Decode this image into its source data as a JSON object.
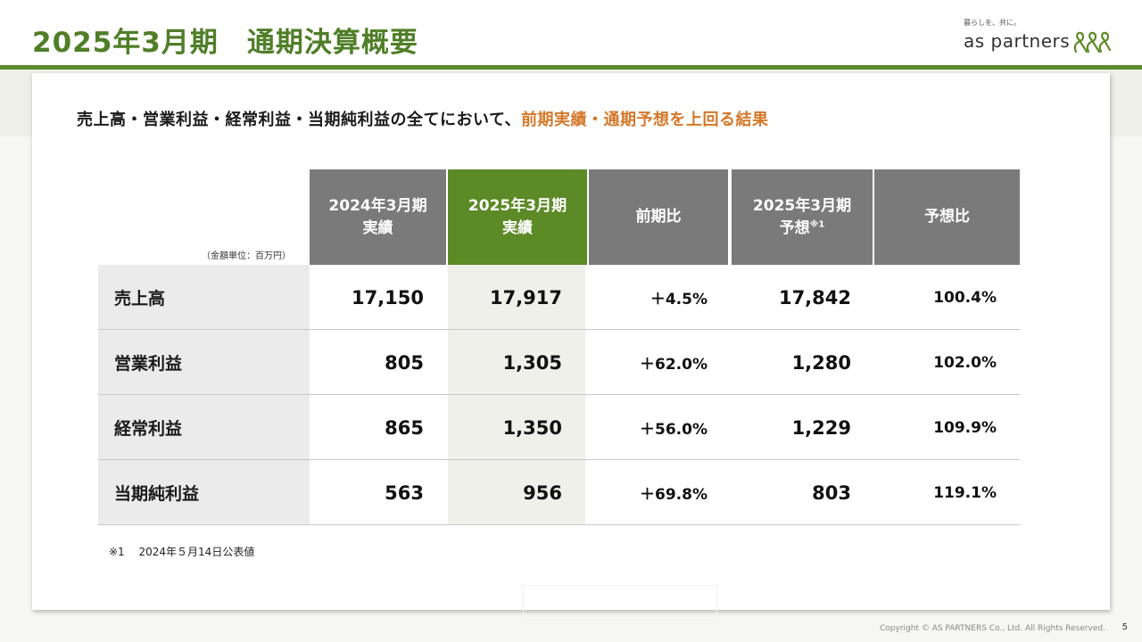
{
  "header": {
    "title": "2025年3月期　通期決算概要",
    "logo_tagline": "暮らしを、共に。",
    "logo_text": "as partners",
    "logo_icon": "ampersand-logo-icon"
  },
  "headline": {
    "prefix": "売上高・営業利益・経常利益・当期純利益の全てにおいて、",
    "highlight": "前期実績・通期予想を上回る結果"
  },
  "table": {
    "unit_note": "（金額単位：百万円）",
    "columns": [
      {
        "line1": "2024年3月期",
        "line2": "実績"
      },
      {
        "line1": "2025年3月期",
        "line2": "実績"
      },
      {
        "line1": "前期比",
        "line2": ""
      },
      {
        "line1": "2025年3月期",
        "line2": "予想",
        "sup": "※1"
      },
      {
        "line1": "予想比",
        "line2": ""
      }
    ],
    "rows": [
      {
        "label": "売上高",
        "prev": "17,150",
        "cur": "17,917",
        "yoy": "＋4.5%",
        "forecast": "17,842",
        "vs_forecast": "100.4%"
      },
      {
        "label": "営業利益",
        "prev": "805",
        "cur": "1,305",
        "yoy": "＋62.0%",
        "forecast": "1,280",
        "vs_forecast": "102.0%"
      },
      {
        "label": "経常利益",
        "prev": "865",
        "cur": "1,350",
        "yoy": "＋56.0%",
        "forecast": "1,229",
        "vs_forecast": "109.9%"
      },
      {
        "label": "当期純利益",
        "prev": "563",
        "cur": "956",
        "yoy": "＋69.8%",
        "forecast": "803",
        "vs_forecast": "119.1%"
      }
    ]
  },
  "footnote": "※1　 2024年５月14日公表値",
  "footer": {
    "copyright": "Copyright © AS PARTNERS Co., Ltd. All Rights Reserved.",
    "page_number": "5"
  },
  "colors": {
    "brand_green": "#4f7e27",
    "current_column": "#5c8a26",
    "header_gray": "#7a7a7a",
    "accent_orange": "#d4782a"
  }
}
